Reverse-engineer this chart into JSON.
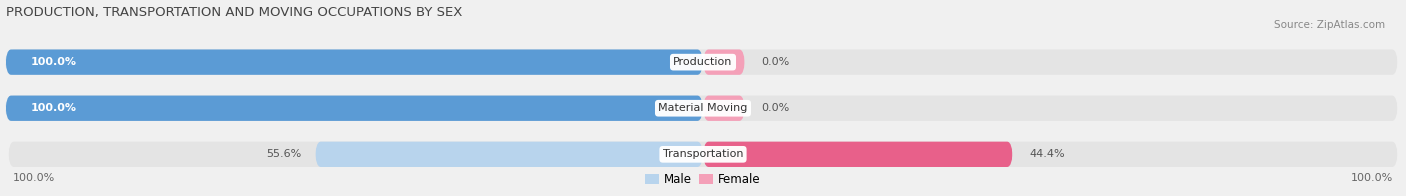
{
  "title": "PRODUCTION, TRANSPORTATION AND MOVING OCCUPATIONS BY SEX",
  "source": "Source: ZipAtlas.com",
  "categories": [
    "Production",
    "Material Moving",
    "Transportation"
  ],
  "male_values": [
    100.0,
    100.0,
    55.6
  ],
  "female_values": [
    0.0,
    0.0,
    44.4
  ],
  "male_color_100": "#5b9bd5",
  "male_color_partial": "#b8d4ed",
  "female_color_100": "#e8608a",
  "female_color_partial": "#f4a0b8",
  "female_color_stub": "#f4a0b8",
  "bg_color": "#f0f0f0",
  "bar_bg_color": "#e4e4e4",
  "figsize": [
    14.06,
    1.96
  ],
  "dpi": 100
}
